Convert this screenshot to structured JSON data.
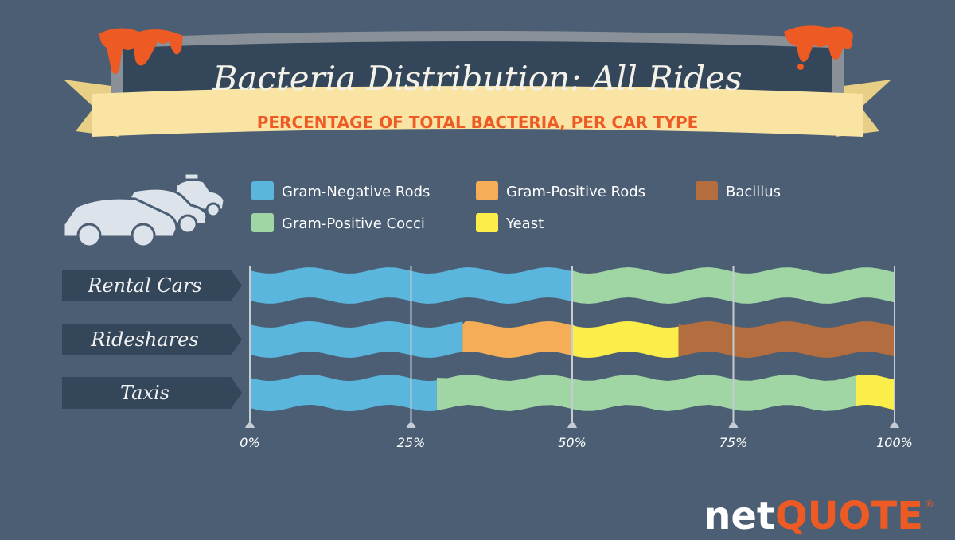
{
  "banner": {
    "title": "Bacteria Distribution: All Rides",
    "subtitle": "PERCENTAGE OF TOTAL BACTERIA, PER CAR TYPE"
  },
  "chart_data": {
    "type": "bar",
    "stacked": true,
    "orientation": "horizontal",
    "categories": [
      "Rental Cars",
      "Rideshares",
      "Taxis"
    ],
    "series": [
      {
        "name": "Gram-Negative Rods",
        "color": "#5ab6dc",
        "values": [
          50,
          33,
          29
        ]
      },
      {
        "name": "Gram-Positive Cocci",
        "color": "#9fd6a3",
        "values": [
          50,
          0,
          65
        ]
      },
      {
        "name": "Gram-Positive Rods",
        "color": "#f5ad57",
        "values": [
          0,
          17,
          0
        ]
      },
      {
        "name": "Yeast",
        "color": "#fbee4a",
        "values": [
          0,
          16.5,
          6
        ]
      },
      {
        "name": "Bacillus",
        "color": "#b36d3f",
        "values": [
          0,
          33.5,
          0
        ]
      }
    ],
    "xlim": [
      0,
      100
    ],
    "ticks": [
      "0%",
      "25%",
      "50%",
      "75%",
      "100%"
    ],
    "grid": true,
    "legend": {
      "placement": "top",
      "order": [
        "Gram-Negative Rods",
        "Gram-Positive Rods",
        "Bacillus",
        "Gram-Positive Cocci",
        "Yeast"
      ]
    }
  },
  "logo": {
    "text": "netQUOTE",
    "part1": "net",
    "part2": "QUOTE",
    "mark": "®"
  },
  "colors": {
    "background": "#4b5e73",
    "ribbon": "#fae4a4",
    "accent": "#ee5a24",
    "label_bg": "#34465a"
  },
  "icons": [
    "car-icon",
    "suv-icon",
    "taxi-icon"
  ]
}
